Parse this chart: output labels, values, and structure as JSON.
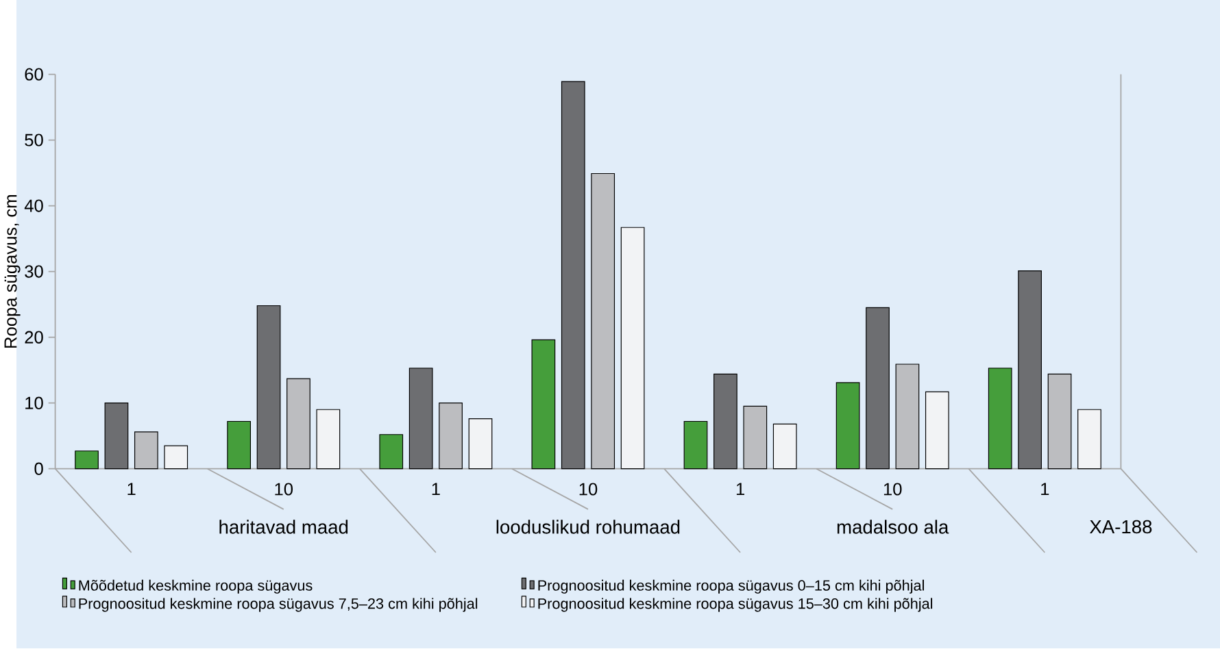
{
  "chart_data": {
    "type": "bar",
    "ylabel": "Roopa sügavus, cm",
    "categories": [
      "1",
      "10",
      "1",
      "10",
      "1",
      "10",
      "1"
    ],
    "annotations": [
      "haritavad maad",
      "looduslikud rohumaad",
      "madalsoo ala",
      "XA-188"
    ],
    "series": [
      {
        "name": "Mõõdetud keskmine roopa sügavus",
        "color": "#459e3b",
        "values": [
          2.7,
          7.2,
          5.2,
          19.6,
          7.2,
          13.1,
          15.3
        ]
      },
      {
        "name": "Prognoositud keskmine roopa sügavus 0–15 cm kihi põhjal",
        "color": "#6d6e71",
        "values": [
          10,
          24.8,
          15.3,
          58.9,
          14.4,
          24.5,
          30.1
        ]
      },
      {
        "name": "Prognoositud keskmine roopa sügavus 7,5–23 cm kihi põhjal",
        "color": "#bcbdc0",
        "values": [
          5.6,
          13.7,
          10,
          44.9,
          9.5,
          15.9,
          14.4
        ]
      },
      {
        "name": "Prognoositud keskmine roopa sügavus 15–30 cm kihi põhjal",
        "color": "#f2f3f5",
        "values": [
          3.5,
          9.0,
          7.6,
          36.7,
          6.8,
          11.7,
          9.0
        ]
      }
    ],
    "ylim": [
      0,
      60
    ],
    "yticks": [
      0,
      10,
      20,
      30,
      40,
      50,
      60
    ],
    "legend": "bottom"
  }
}
